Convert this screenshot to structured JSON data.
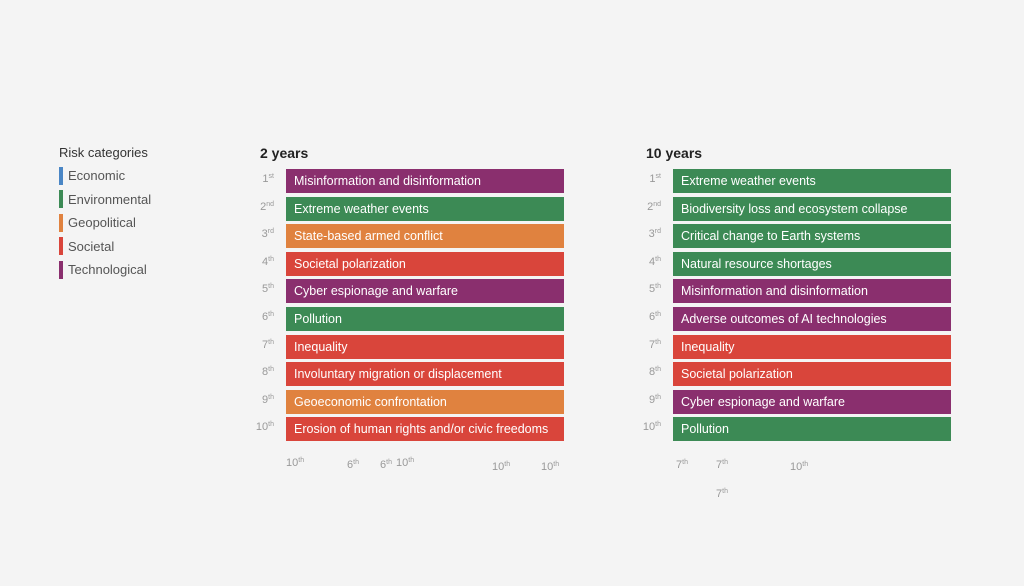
{
  "colors": {
    "Economic": "#4a86c5",
    "Environmental": "#3c8a55",
    "Geopolitical": "#e0823f",
    "Societal": "#d9453b",
    "Technological": "#8a2f6e"
  },
  "legend": {
    "title": "Risk categories",
    "items": [
      {
        "label": "Economic"
      },
      {
        "label": "Environmental"
      },
      {
        "label": "Geopolitical"
      },
      {
        "label": "Societal"
      },
      {
        "label": "Technological"
      }
    ]
  },
  "panels": [
    {
      "title": "2 years",
      "rows": [
        {
          "rank": "1",
          "suffix": "st",
          "label": "Misinformation and disinformation",
          "category": "Technological"
        },
        {
          "rank": "2",
          "suffix": "nd",
          "label": "Extreme weather events",
          "category": "Environmental"
        },
        {
          "rank": "3",
          "suffix": "rd",
          "label": "State-based armed conflict",
          "category": "Geopolitical"
        },
        {
          "rank": "4",
          "suffix": "th",
          "label": "Societal polarization",
          "category": "Societal"
        },
        {
          "rank": "5",
          "suffix": "th",
          "label": "Cyber espionage and warfare",
          "category": "Technological"
        },
        {
          "rank": "6",
          "suffix": "th",
          "label": "Pollution",
          "category": "Environmental"
        },
        {
          "rank": "7",
          "suffix": "th",
          "label": "Inequality",
          "category": "Societal"
        },
        {
          "rank": "8",
          "suffix": "th",
          "label": "Involuntary migration or displacement",
          "category": "Societal"
        },
        {
          "rank": "9",
          "suffix": "th",
          "label": "Geoeconomic confrontation",
          "category": "Geopolitical"
        },
        {
          "rank": "10",
          "suffix": "th",
          "label": "Erosion of human rights and/or civic freedoms",
          "category": "Societal"
        }
      ],
      "faint": [
        {
          "rank": "10",
          "suffix": "th"
        },
        {
          "rank": "6",
          "suffix": "th"
        },
        {
          "rank": "6",
          "suffix": "th"
        },
        {
          "rank": "10",
          "suffix": "th"
        },
        {
          "rank": "10",
          "suffix": "th"
        },
        {
          "rank": "10",
          "suffix": "th"
        }
      ]
    },
    {
      "title": "10 years",
      "rows": [
        {
          "rank": "1",
          "suffix": "st",
          "label": "Extreme weather events",
          "category": "Environmental"
        },
        {
          "rank": "2",
          "suffix": "nd",
          "label": "Biodiversity loss and ecosystem collapse",
          "category": "Environmental"
        },
        {
          "rank": "3",
          "suffix": "rd",
          "label": "Critical change to Earth systems",
          "category": "Environmental"
        },
        {
          "rank": "4",
          "suffix": "th",
          "label": "Natural resource shortages",
          "category": "Environmental"
        },
        {
          "rank": "5",
          "suffix": "th",
          "label": "Misinformation and disinformation",
          "category": "Technological"
        },
        {
          "rank": "6",
          "suffix": "th",
          "label": "Adverse outcomes of AI technologies",
          "category": "Technological"
        },
        {
          "rank": "7",
          "suffix": "th",
          "label": "Inequality",
          "category": "Societal"
        },
        {
          "rank": "8",
          "suffix": "th",
          "label": "Societal polarization",
          "category": "Societal"
        },
        {
          "rank": "9",
          "suffix": "th",
          "label": "Cyber espionage and warfare",
          "category": "Technological"
        },
        {
          "rank": "10",
          "suffix": "th",
          "label": "Pollution",
          "category": "Environmental"
        }
      ],
      "faint": [
        {
          "rank": "7",
          "suffix": "th"
        },
        {
          "rank": "7",
          "suffix": "th"
        },
        {
          "rank": "10",
          "suffix": "th"
        },
        {
          "rank": "7",
          "suffix": "th"
        }
      ]
    }
  ]
}
